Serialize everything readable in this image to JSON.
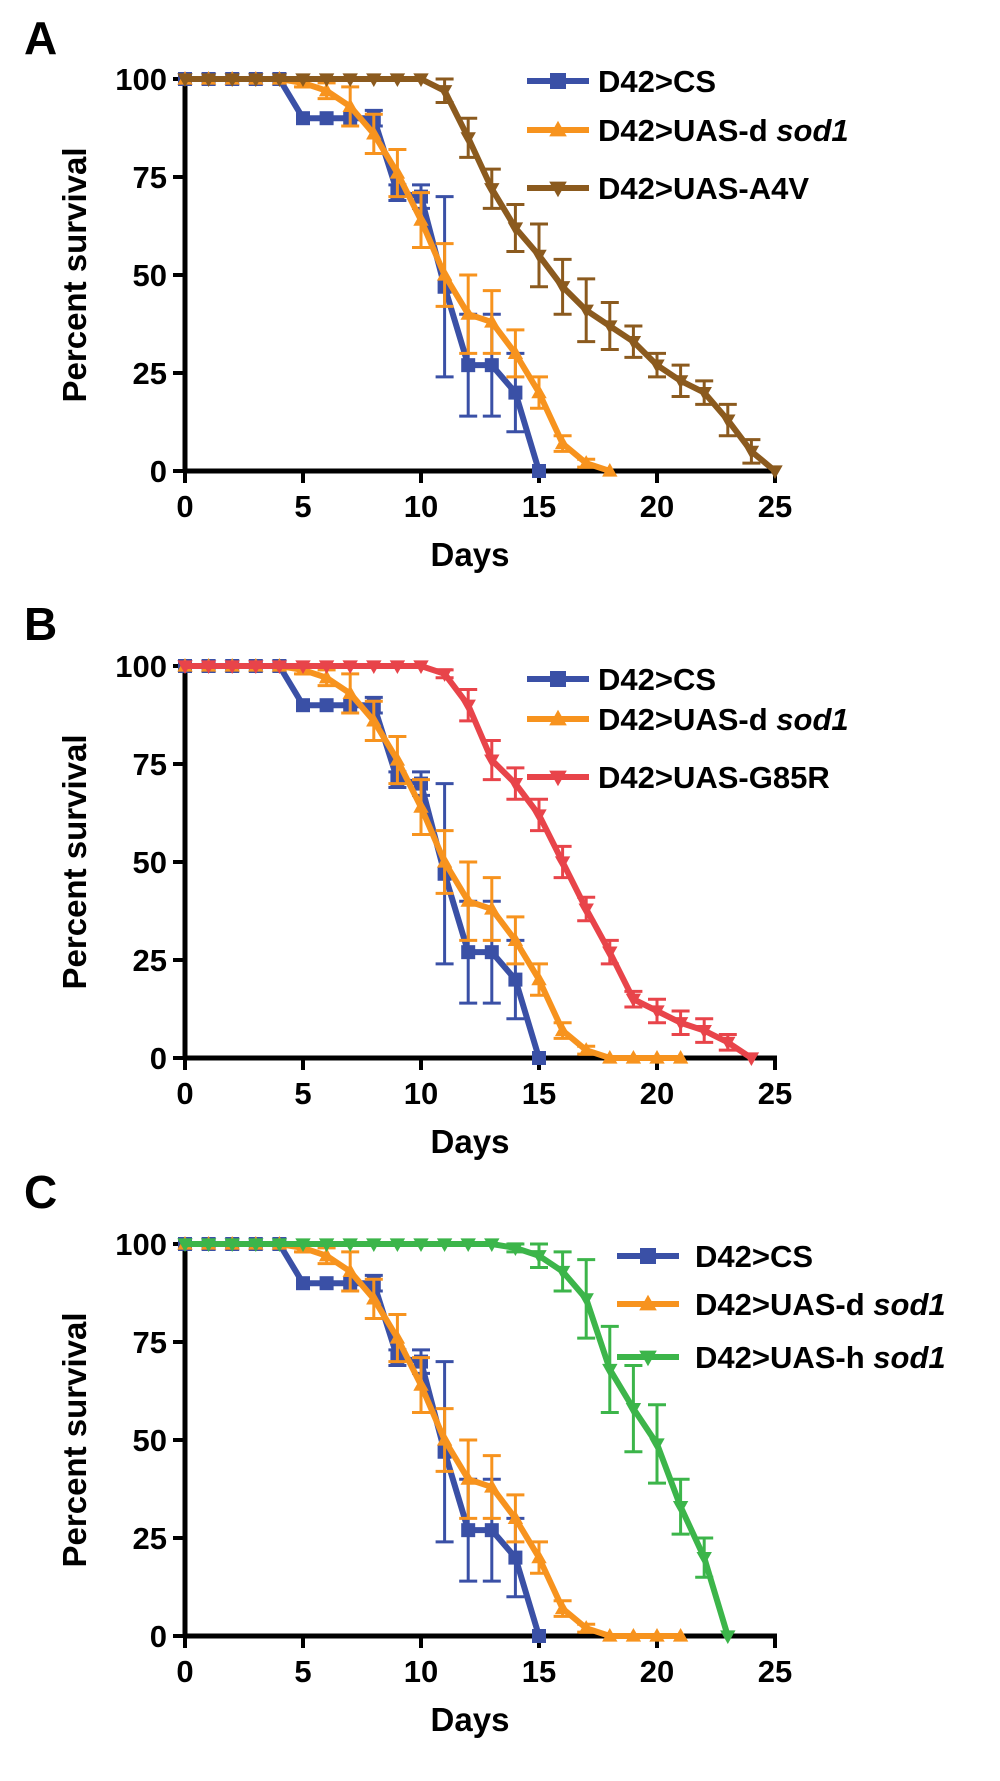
{
  "chart_data": [
    {
      "type": "line",
      "panel_label": "A",
      "xlabel": "Days",
      "ylabel": "Percent survival",
      "xlim": [
        0,
        25
      ],
      "ylim": [
        0,
        100
      ],
      "xticks": [
        "0",
        "5",
        "10",
        "15",
        "20",
        "25"
      ],
      "yticks": [
        "0",
        "25",
        "50",
        "75",
        "100"
      ],
      "grid": false,
      "legend_position": "top-right",
      "series": [
        {
          "name": "D42>CS",
          "name_prefix": "D42>CS",
          "name_italic": "",
          "color": "#3a50a6",
          "marker": "square",
          "x": [
            0,
            1,
            2,
            3,
            4,
            5,
            6,
            7,
            8,
            9,
            10,
            11,
            12,
            13,
            14,
            15
          ],
          "y": [
            100,
            100,
            100,
            100,
            100,
            90,
            90,
            90,
            90,
            71,
            70,
            47,
            27,
            27,
            20,
            0
          ],
          "err": [
            0,
            0,
            0,
            0,
            0,
            0,
            0,
            0,
            2,
            2,
            3,
            23,
            13,
            13,
            10,
            0
          ]
        },
        {
          "name": "D42>UAS-d sod1",
          "name_prefix": "D42>UAS-d ",
          "name_italic": "sod1",
          "color": "#f7931e",
          "marker": "triangle-up",
          "x": [
            0,
            1,
            2,
            3,
            4,
            5,
            6,
            7,
            8,
            9,
            10,
            11,
            12,
            13,
            14,
            15,
            16,
            17,
            18
          ],
          "y": [
            100,
            100,
            100,
            100,
            100,
            99,
            97,
            93,
            86,
            76,
            64,
            50,
            40,
            38,
            30,
            20,
            7,
            2,
            0
          ],
          "err": [
            0,
            0,
            0,
            0,
            0,
            1,
            2,
            5,
            5,
            6,
            7,
            8,
            10,
            8,
            6,
            4,
            2,
            1,
            0
          ]
        },
        {
          "name": "D42>UAS-A4V",
          "name_prefix": "D42>UAS-A4V",
          "name_italic": "",
          "color": "#8b5a1e",
          "marker": "triangle-down",
          "x": [
            0,
            1,
            2,
            3,
            4,
            5,
            6,
            7,
            8,
            9,
            10,
            11,
            12,
            13,
            14,
            15,
            16,
            17,
            18,
            19,
            20,
            21,
            22,
            23,
            24,
            25
          ],
          "y": [
            100,
            100,
            100,
            100,
            100,
            100,
            100,
            100,
            100,
            100,
            100,
            97,
            85,
            72,
            62,
            55,
            47,
            41,
            37,
            33,
            27,
            23,
            20,
            13,
            5,
            0
          ],
          "err": [
            0,
            0,
            0,
            0,
            0,
            0,
            0,
            0,
            0,
            0,
            0,
            3,
            5,
            5,
            6,
            8,
            7,
            8,
            6,
            4,
            3,
            4,
            3,
            4,
            3,
            0
          ]
        }
      ]
    },
    {
      "type": "line",
      "panel_label": "B",
      "xlabel": "Days",
      "ylabel": "Percent survival",
      "xlim": [
        0,
        25
      ],
      "ylim": [
        0,
        100
      ],
      "xticks": [
        "0",
        "5",
        "10",
        "15",
        "20",
        "25"
      ],
      "yticks": [
        "0",
        "25",
        "50",
        "75",
        "100"
      ],
      "grid": false,
      "legend_position": "top-right",
      "series": [
        {
          "name": "D42>CS",
          "name_prefix": "D42>CS",
          "name_italic": "",
          "color": "#3a50a6",
          "marker": "square",
          "x": [
            0,
            1,
            2,
            3,
            4,
            5,
            6,
            7,
            8,
            9,
            10,
            11,
            12,
            13,
            14,
            15
          ],
          "y": [
            100,
            100,
            100,
            100,
            100,
            90,
            90,
            90,
            90,
            71,
            70,
            47,
            27,
            27,
            20,
            0
          ],
          "err": [
            0,
            0,
            0,
            0,
            0,
            0,
            0,
            0,
            2,
            2,
            3,
            23,
            13,
            13,
            10,
            0
          ]
        },
        {
          "name": "D42>UAS-d sod1",
          "name_prefix": "D42>UAS-d ",
          "name_italic": "sod1",
          "color": "#f7931e",
          "marker": "triangle-up",
          "x": [
            0,
            1,
            2,
            3,
            4,
            5,
            6,
            7,
            8,
            9,
            10,
            11,
            12,
            13,
            14,
            15,
            16,
            17,
            18,
            19,
            20,
            21
          ],
          "y": [
            100,
            100,
            100,
            100,
            100,
            99,
            97,
            93,
            86,
            76,
            64,
            50,
            40,
            38,
            30,
            20,
            7,
            2,
            0,
            0,
            0,
            0
          ],
          "err": [
            0,
            0,
            0,
            0,
            0,
            1,
            2,
            5,
            5,
            6,
            7,
            8,
            10,
            8,
            6,
            4,
            2,
            1,
            0,
            0,
            0,
            0
          ]
        },
        {
          "name": "D42>UAS-G85R",
          "name_prefix": "D42>UAS-G85R",
          "name_italic": "",
          "color": "#e8444a",
          "marker": "triangle-down",
          "x": [
            0,
            1,
            2,
            3,
            4,
            5,
            6,
            7,
            8,
            9,
            10,
            11,
            12,
            13,
            14,
            15,
            16,
            17,
            18,
            19,
            20,
            21,
            22,
            23,
            24
          ],
          "y": [
            100,
            100,
            100,
            100,
            100,
            100,
            100,
            100,
            100,
            100,
            100,
            98,
            90,
            76,
            70,
            62,
            50,
            38,
            27,
            15,
            12,
            9,
            7,
            4,
            0
          ],
          "err": [
            0,
            0,
            0,
            0,
            0,
            0,
            0,
            0,
            0,
            0,
            0,
            1,
            4,
            5,
            4,
            4,
            4,
            3,
            3,
            2,
            3,
            3,
            3,
            2,
            0
          ]
        }
      ]
    },
    {
      "type": "line",
      "panel_label": "C",
      "xlabel": "Days",
      "ylabel": "Percent survival",
      "xlim": [
        0,
        25
      ],
      "ylim": [
        0,
        100
      ],
      "xticks": [
        "0",
        "5",
        "10",
        "15",
        "20",
        "25"
      ],
      "yticks": [
        "0",
        "25",
        "50",
        "75",
        "100"
      ],
      "grid": false,
      "legend_position": "top-right",
      "series": [
        {
          "name": "D42>CS",
          "name_prefix": "D42>CS",
          "name_italic": "",
          "color": "#3a50a6",
          "marker": "square",
          "x": [
            0,
            1,
            2,
            3,
            4,
            5,
            6,
            7,
            8,
            9,
            10,
            11,
            12,
            13,
            14,
            15
          ],
          "y": [
            100,
            100,
            100,
            100,
            100,
            90,
            90,
            90,
            90,
            71,
            70,
            47,
            27,
            27,
            20,
            0
          ],
          "err": [
            0,
            0,
            0,
            0,
            0,
            0,
            0,
            0,
            2,
            2,
            3,
            23,
            13,
            13,
            10,
            0
          ]
        },
        {
          "name": "D42>UAS-d sod1",
          "name_prefix": "D42>UAS-d ",
          "name_italic": "sod1",
          "color": "#f7931e",
          "marker": "triangle-up",
          "x": [
            0,
            1,
            2,
            3,
            4,
            5,
            6,
            7,
            8,
            9,
            10,
            11,
            12,
            13,
            14,
            15,
            16,
            17,
            18,
            19,
            20,
            21
          ],
          "y": [
            100,
            100,
            100,
            100,
            100,
            99,
            97,
            93,
            86,
            76,
            64,
            50,
            40,
            38,
            30,
            20,
            7,
            2,
            0,
            0,
            0,
            0
          ],
          "err": [
            0,
            0,
            0,
            0,
            0,
            1,
            2,
            5,
            5,
            6,
            7,
            8,
            10,
            8,
            6,
            4,
            2,
            1,
            0,
            0,
            0,
            0
          ]
        },
        {
          "name": "D42>UAS-h sod1",
          "name_prefix": "D42>UAS-h ",
          "name_italic": "sod1",
          "color": "#3cb54a",
          "marker": "triangle-down",
          "x": [
            0,
            1,
            2,
            3,
            4,
            5,
            6,
            7,
            8,
            9,
            10,
            11,
            12,
            13,
            14,
            15,
            16,
            17,
            18,
            19,
            20,
            21,
            22,
            23
          ],
          "y": [
            100,
            100,
            100,
            100,
            100,
            100,
            100,
            100,
            100,
            100,
            100,
            100,
            100,
            100,
            99,
            97,
            93,
            86,
            68,
            58,
            49,
            33,
            20,
            0
          ],
          "err": [
            0,
            0,
            0,
            0,
            0,
            0,
            0,
            0,
            0,
            0,
            0,
            0,
            0,
            0,
            1,
            3,
            5,
            10,
            11,
            11,
            10,
            7,
            5,
            0
          ]
        }
      ]
    }
  ]
}
